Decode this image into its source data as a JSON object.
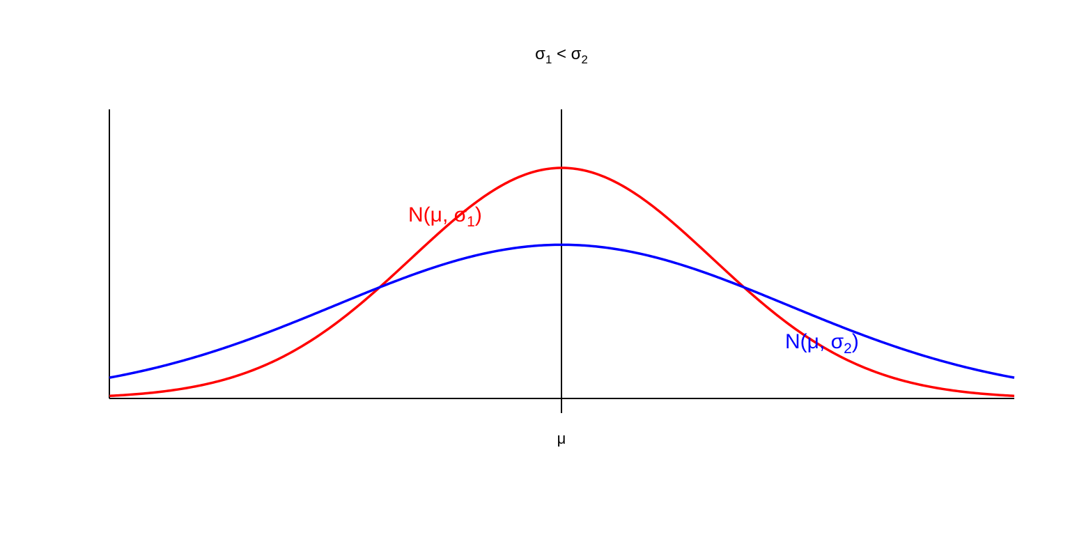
{
  "chart_data": {
    "type": "line",
    "title": {
      "base1": "σ",
      "sub1": "1",
      "mid": " < ",
      "base2": "σ",
      "sub2": "2"
    },
    "x_tick_label": "μ",
    "x_range": [
      -3,
      3
    ],
    "series": [
      {
        "name": {
          "prefix": "N(μ, σ",
          "sub": "1",
          "suffix": ")"
        },
        "sigma": 1,
        "mean": 0,
        "color": "#ff0000"
      },
      {
        "name": {
          "prefix": "N(μ, σ",
          "sub": "2",
          "suffix": ")"
        },
        "sigma": 1.5,
        "mean": 0,
        "color": "#0000ff"
      }
    ],
    "axis_color": "#000000"
  }
}
